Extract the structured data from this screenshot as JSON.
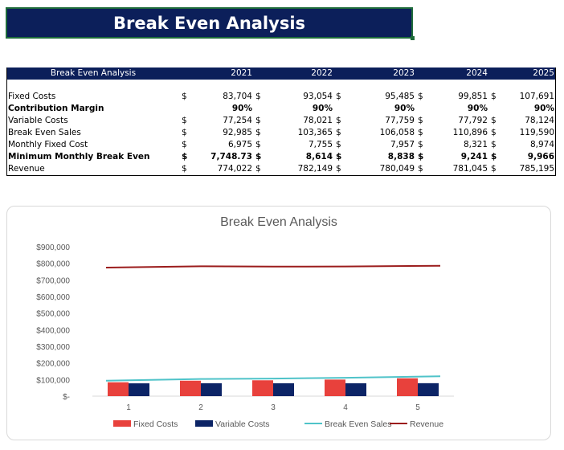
{
  "title": "Break Even Analysis",
  "table": {
    "header_label": "Break Even Analysis",
    "years": [
      "2021",
      "2022",
      "2023",
      "2024",
      "2025"
    ],
    "rows": [
      {
        "label": "Fixed Costs",
        "bold": false,
        "currency": [
          "$",
          "$",
          "$",
          "$",
          "$"
        ],
        "values": [
          "83,704",
          "93,054",
          "95,485",
          "99,851",
          "107,691"
        ]
      },
      {
        "label": "Contribution Margin",
        "bold": true,
        "currency": [
          "",
          "",
          "",
          "",
          ""
        ],
        "values": [
          "90%",
          "90%",
          "90%",
          "90%",
          "90%"
        ]
      },
      {
        "label": "Variable Costs",
        "bold": false,
        "currency": [
          "$",
          "$",
          "$",
          "$",
          "$"
        ],
        "values": [
          "77,254",
          "78,021",
          "77,759",
          "77,792",
          "78,124"
        ]
      },
      {
        "label": "Break Even Sales",
        "bold": false,
        "currency": [
          "$",
          "$",
          "$",
          "$",
          "$"
        ],
        "values": [
          "92,985",
          "103,365",
          "106,058",
          "110,896",
          "119,590"
        ]
      },
      {
        "label": "Monthly Fixed Cost",
        "bold": false,
        "currency": [
          "$",
          "$",
          "$",
          "$",
          "$"
        ],
        "values": [
          "6,975",
          "7,755",
          "7,957",
          "8,321",
          "8,974"
        ]
      },
      {
        "label": "Minimum Monthly Break Even",
        "bold": true,
        "currency": [
          "$",
          "$",
          "$",
          "$",
          "$"
        ],
        "values": [
          "7,748.73",
          "8,614",
          "8,838",
          "9,241",
          "9,966"
        ]
      },
      {
        "label": "Revenue",
        "bold": false,
        "currency": [
          "$",
          "$",
          "$",
          "$",
          "$"
        ],
        "values": [
          "774,022",
          "782,149",
          "780,049",
          "781,045",
          "785,195"
        ]
      }
    ]
  },
  "chart_data": {
    "type": "bar",
    "title": "Break Even Analysis",
    "categories": [
      "1",
      "2",
      "3",
      "4",
      "5"
    ],
    "y_ticks": [
      "$-",
      "$100,000",
      "$200,000",
      "$300,000",
      "$400,000",
      "$500,000",
      "$600,000",
      "$700,000",
      "$800,000",
      "$900,000"
    ],
    "ylim": [
      0,
      900000
    ],
    "grid": false,
    "legend_position": "bottom",
    "series": [
      {
        "name": "Fixed Costs",
        "kind": "bar",
        "color": "#e8413c",
        "values": [
          83704,
          93054,
          95485,
          99851,
          107691
        ]
      },
      {
        "name": "Variable Costs",
        "kind": "bar",
        "color": "#0c2466",
        "values": [
          77254,
          78021,
          77759,
          77792,
          78124
        ]
      },
      {
        "name": "Break Even Sales",
        "kind": "line",
        "color": "#4fc3c9",
        "values": [
          92985,
          103365,
          106058,
          110896,
          119590
        ]
      },
      {
        "name": "Revenue",
        "kind": "line",
        "color": "#9b1c1c",
        "values": [
          774022,
          782149,
          780049,
          781045,
          785195
        ]
      }
    ]
  }
}
